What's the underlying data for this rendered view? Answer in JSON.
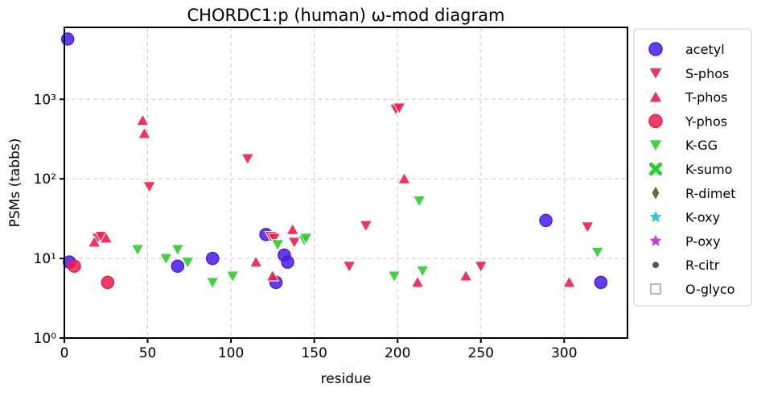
{
  "chart_data": {
    "type": "scatter",
    "title": "CHORDC1:p (human) ω-mod diagram",
    "xlabel": "residue",
    "ylabel": "PSMs (tabbs)",
    "xlim": [
      0,
      338
    ],
    "ylim": [
      1,
      8000
    ],
    "yscale": "log",
    "grid": true,
    "legend_position": "outside-right",
    "x_ticks": [
      0,
      50,
      100,
      150,
      200,
      250,
      300
    ],
    "y_ticks": [
      {
        "value": 1,
        "label": "10⁰"
      },
      {
        "value": 10,
        "label": "10¹"
      },
      {
        "value": 100,
        "label": "10²"
      },
      {
        "value": 1000,
        "label": "10³"
      }
    ],
    "series": [
      {
        "name": "acetyl",
        "marker": "circle",
        "color": "#4a1be6",
        "points": [
          [
            2,
            5700
          ],
          [
            3,
            9
          ],
          [
            68,
            8
          ],
          [
            89,
            10
          ],
          [
            121,
            20
          ],
          [
            127,
            5
          ],
          [
            132,
            11
          ],
          [
            134,
            9
          ],
          [
            289,
            30
          ],
          [
            322,
            5
          ]
        ]
      },
      {
        "name": "S-phos",
        "marker": "triangle-down",
        "color": "#ee1c4a",
        "points": [
          [
            20,
            18
          ],
          [
            22,
            19
          ],
          [
            51,
            80
          ],
          [
            110,
            180
          ],
          [
            124,
            19
          ],
          [
            126,
            18
          ],
          [
            138,
            16
          ],
          [
            171,
            8
          ],
          [
            181,
            26
          ],
          [
            199,
            750
          ],
          [
            201,
            780
          ],
          [
            250,
            8
          ],
          [
            314,
            25
          ]
        ]
      },
      {
        "name": "T-phos",
        "marker": "triangle-up",
        "color": "#ee1c4a",
        "points": [
          [
            18,
            16
          ],
          [
            25,
            18
          ],
          [
            47,
            540
          ],
          [
            48,
            370
          ],
          [
            115,
            9
          ],
          [
            125,
            6
          ],
          [
            137,
            23
          ],
          [
            204,
            100
          ],
          [
            212,
            5
          ],
          [
            241,
            6
          ],
          [
            303,
            5
          ]
        ]
      },
      {
        "name": "Y-phos",
        "marker": "circle",
        "color": "#ee1c4a",
        "points": [
          [
            6,
            8
          ],
          [
            26,
            5
          ]
        ]
      },
      {
        "name": "K-GG",
        "marker": "triangle-down",
        "color": "#2ecc2e",
        "points": [
          [
            44,
            13
          ],
          [
            61,
            10
          ],
          [
            68,
            13
          ],
          [
            74,
            9
          ],
          [
            89,
            5
          ],
          [
            101,
            6
          ],
          [
            128,
            15
          ],
          [
            144,
            17
          ],
          [
            145,
            18
          ],
          [
            198,
            6
          ],
          [
            213,
            53
          ],
          [
            215,
            7
          ],
          [
            320,
            12
          ]
        ]
      },
      {
        "name": "K-sumo",
        "marker": "x",
        "color": "#2ecc2e",
        "points": []
      },
      {
        "name": "R-dimet",
        "marker": "diamond",
        "color": "#6b6b35",
        "points": []
      },
      {
        "name": "K-oxy",
        "marker": "star",
        "color": "#2ec8d0",
        "points": []
      },
      {
        "name": "P-oxy",
        "marker": "star",
        "color": "#c040d8",
        "points": []
      },
      {
        "name": "R-citr",
        "marker": "dot",
        "color": "#555555",
        "points": []
      },
      {
        "name": "O-glyco",
        "marker": "square-open",
        "color": "#888888",
        "points": []
      }
    ]
  }
}
